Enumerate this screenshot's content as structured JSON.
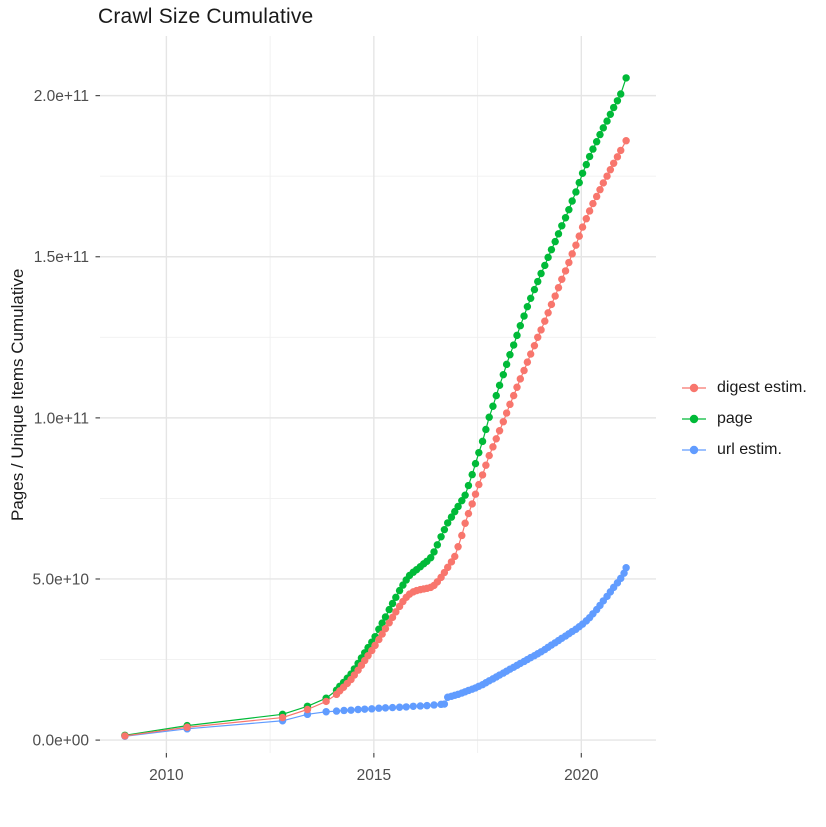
{
  "chart_data": {
    "type": "line",
    "title": "Crawl Size Cumulative",
    "xlabel": "",
    "ylabel": "Pages / Unique Items Cumulative",
    "unit": "values stored in billions (1e9); y axis shown in scientific notation",
    "grid": true,
    "legend_position": "right",
    "x_domain": [
      2008.4,
      2021.8
    ],
    "y_domain": [
      -4,
      218.5
    ],
    "x_ticks": [
      {
        "v": 2010,
        "label": "2010"
      },
      {
        "v": 2015,
        "label": "2015"
      },
      {
        "v": 2020,
        "label": "2020"
      }
    ],
    "x_minor": [
      2012.5,
      2017.5
    ],
    "y_ticks": [
      {
        "v": 0,
        "label": "0.0e+00"
      },
      {
        "v": 50,
        "label": "5.0e+10"
      },
      {
        "v": 100,
        "label": "1.0e+11"
      },
      {
        "v": 150,
        "label": "1.5e+11"
      },
      {
        "v": 200,
        "label": "2.0e+11"
      }
    ],
    "y_minor": [
      25,
      75,
      125,
      175
    ],
    "series": [
      {
        "name": "digest estim.",
        "color": "#F8766D",
        "points": [
          [
            2009.0,
            1.3
          ],
          [
            2010.5,
            4.0
          ],
          [
            2012.8,
            7.0
          ],
          [
            2013.4,
            9.5
          ],
          [
            2013.85,
            12.0
          ],
          [
            2014.1,
            14.2
          ],
          [
            2014.18,
            15.3
          ],
          [
            2014.27,
            16.4
          ],
          [
            2014.36,
            17.6
          ],
          [
            2014.45,
            18.8
          ],
          [
            2014.53,
            20.2
          ],
          [
            2014.62,
            21.7
          ],
          [
            2014.7,
            23.2
          ],
          [
            2014.78,
            24.7
          ],
          [
            2014.86,
            26.2
          ],
          [
            2014.95,
            27.8
          ],
          [
            2015.03,
            29.4
          ],
          [
            2015.12,
            31.2
          ],
          [
            2015.2,
            32.9
          ],
          [
            2015.28,
            34.6
          ],
          [
            2015.37,
            36.4
          ],
          [
            2015.45,
            38.1
          ],
          [
            2015.53,
            39.8
          ],
          [
            2015.62,
            41.5
          ],
          [
            2015.7,
            43.0
          ],
          [
            2015.78,
            44.3
          ],
          [
            2015.86,
            45.3
          ],
          [
            2015.95,
            46.0
          ],
          [
            2016.03,
            46.4
          ],
          [
            2016.12,
            46.7
          ],
          [
            2016.2,
            46.9
          ],
          [
            2016.28,
            47.1
          ],
          [
            2016.37,
            47.4
          ],
          [
            2016.45,
            48.0
          ],
          [
            2016.53,
            49.1
          ],
          [
            2016.62,
            50.5
          ],
          [
            2016.7,
            52.0
          ],
          [
            2016.78,
            53.6
          ],
          [
            2016.87,
            55.3
          ],
          [
            2016.95,
            57.0
          ],
          [
            2017.03,
            60.0
          ],
          [
            2017.12,
            63.5
          ],
          [
            2017.2,
            67.3
          ],
          [
            2017.28,
            70.3
          ],
          [
            2017.37,
            73.3
          ],
          [
            2017.45,
            76.3
          ],
          [
            2017.53,
            79.3
          ],
          [
            2017.62,
            82.3
          ],
          [
            2017.7,
            85.3
          ],
          [
            2017.78,
            88.3
          ],
          [
            2017.87,
            91.0
          ],
          [
            2017.95,
            93.5
          ],
          [
            2018.03,
            96.0
          ],
          [
            2018.12,
            98.8
          ],
          [
            2018.2,
            101.5
          ],
          [
            2018.28,
            104.2
          ],
          [
            2018.37,
            106.9
          ],
          [
            2018.45,
            109.5
          ],
          [
            2018.53,
            112.1
          ],
          [
            2018.62,
            114.7
          ],
          [
            2018.7,
            117.3
          ],
          [
            2018.78,
            119.8
          ],
          [
            2018.87,
            122.4
          ],
          [
            2018.95,
            125.0
          ],
          [
            2019.03,
            127.3
          ],
          [
            2019.12,
            130.0
          ],
          [
            2019.2,
            132.6
          ],
          [
            2019.28,
            135.2
          ],
          [
            2019.37,
            137.8
          ],
          [
            2019.45,
            140.4
          ],
          [
            2019.53,
            143.0
          ],
          [
            2019.62,
            145.6
          ],
          [
            2019.7,
            148.2
          ],
          [
            2019.78,
            150.9
          ],
          [
            2019.87,
            153.6
          ],
          [
            2019.95,
            156.4
          ],
          [
            2020.03,
            159.2
          ],
          [
            2020.12,
            161.8
          ],
          [
            2020.2,
            164.2
          ],
          [
            2020.28,
            166.5
          ],
          [
            2020.37,
            168.7
          ],
          [
            2020.45,
            170.8
          ],
          [
            2020.53,
            172.9
          ],
          [
            2020.62,
            175.0
          ],
          [
            2020.7,
            177.0
          ],
          [
            2020.78,
            179.0
          ],
          [
            2020.87,
            181.0
          ],
          [
            2020.95,
            183.0
          ],
          [
            2021.08,
            186.0
          ]
        ]
      },
      {
        "name": "page",
        "color": "#00BA38",
        "points": [
          [
            2009.0,
            1.5
          ],
          [
            2010.5,
            4.5
          ],
          [
            2012.8,
            8.0
          ],
          [
            2013.4,
            10.5
          ],
          [
            2013.85,
            13.0
          ],
          [
            2014.1,
            15.5
          ],
          [
            2014.18,
            16.7
          ],
          [
            2014.27,
            17.9
          ],
          [
            2014.36,
            19.2
          ],
          [
            2014.45,
            20.5
          ],
          [
            2014.53,
            22.1
          ],
          [
            2014.62,
            23.8
          ],
          [
            2014.7,
            25.5
          ],
          [
            2014.78,
            27.1
          ],
          [
            2014.86,
            28.7
          ],
          [
            2014.95,
            30.4
          ],
          [
            2015.03,
            32.1
          ],
          [
            2015.12,
            34.4
          ],
          [
            2015.2,
            36.3
          ],
          [
            2015.28,
            38.2
          ],
          [
            2015.37,
            40.5
          ],
          [
            2015.45,
            42.4
          ],
          [
            2015.53,
            44.3
          ],
          [
            2015.62,
            46.4
          ],
          [
            2015.7,
            48.1
          ],
          [
            2015.78,
            49.7
          ],
          [
            2015.86,
            51.1
          ],
          [
            2015.95,
            52.1
          ],
          [
            2016.03,
            52.9
          ],
          [
            2016.12,
            53.8
          ],
          [
            2016.2,
            54.7
          ],
          [
            2016.28,
            55.5
          ],
          [
            2016.37,
            56.6
          ],
          [
            2016.45,
            58.4
          ],
          [
            2016.53,
            60.6
          ],
          [
            2016.62,
            63.1
          ],
          [
            2016.7,
            65.3
          ],
          [
            2016.78,
            67.4
          ],
          [
            2016.87,
            69.2
          ],
          [
            2016.95,
            70.9
          ],
          [
            2017.03,
            72.5
          ],
          [
            2017.12,
            74.3
          ],
          [
            2017.2,
            76.0
          ],
          [
            2017.28,
            79.0
          ],
          [
            2017.37,
            82.4
          ],
          [
            2017.45,
            85.8
          ],
          [
            2017.53,
            89.2
          ],
          [
            2017.62,
            92.7
          ],
          [
            2017.7,
            96.4
          ],
          [
            2017.78,
            100.2
          ],
          [
            2017.87,
            103.6
          ],
          [
            2017.95,
            106.9
          ],
          [
            2018.03,
            110.1
          ],
          [
            2018.12,
            113.4
          ],
          [
            2018.2,
            116.6
          ],
          [
            2018.28,
            119.6
          ],
          [
            2018.37,
            122.6
          ],
          [
            2018.45,
            125.6
          ],
          [
            2018.53,
            128.6
          ],
          [
            2018.62,
            131.6
          ],
          [
            2018.7,
            134.5
          ],
          [
            2018.78,
            137.1
          ],
          [
            2018.87,
            139.8
          ],
          [
            2018.95,
            142.3
          ],
          [
            2019.03,
            144.8
          ],
          [
            2019.12,
            147.3
          ],
          [
            2019.2,
            149.8
          ],
          [
            2019.28,
            152.2
          ],
          [
            2019.37,
            154.7
          ],
          [
            2019.45,
            157.1
          ],
          [
            2019.53,
            159.6
          ],
          [
            2019.62,
            162.1
          ],
          [
            2019.7,
            164.6
          ],
          [
            2019.78,
            167.3
          ],
          [
            2019.87,
            170.1
          ],
          [
            2019.95,
            173.0
          ],
          [
            2020.03,
            175.9
          ],
          [
            2020.12,
            178.6
          ],
          [
            2020.2,
            181.1
          ],
          [
            2020.28,
            183.4
          ],
          [
            2020.37,
            185.7
          ],
          [
            2020.45,
            187.9
          ],
          [
            2020.53,
            190.0
          ],
          [
            2020.62,
            192.1
          ],
          [
            2020.7,
            194.2
          ],
          [
            2020.78,
            196.3
          ],
          [
            2020.87,
            198.4
          ],
          [
            2020.95,
            200.5
          ],
          [
            2021.08,
            205.5
          ]
        ]
      },
      {
        "name": "url estim.",
        "color": "#619CFF",
        "points": [
          [
            2009.0,
            1.2
          ],
          [
            2010.5,
            3.5
          ],
          [
            2012.8,
            6.0
          ],
          [
            2013.4,
            8.0
          ],
          [
            2013.85,
            8.8
          ],
          [
            2014.1,
            9.0
          ],
          [
            2014.28,
            9.2
          ],
          [
            2014.45,
            9.3
          ],
          [
            2014.62,
            9.5
          ],
          [
            2014.78,
            9.6
          ],
          [
            2014.95,
            9.7
          ],
          [
            2015.12,
            9.9
          ],
          [
            2015.28,
            10.0
          ],
          [
            2015.45,
            10.1
          ],
          [
            2015.62,
            10.2
          ],
          [
            2015.78,
            10.3
          ],
          [
            2015.95,
            10.5
          ],
          [
            2016.12,
            10.6
          ],
          [
            2016.28,
            10.7
          ],
          [
            2016.45,
            10.9
          ],
          [
            2016.62,
            11.1
          ],
          [
            2016.7,
            11.2
          ],
          [
            2016.78,
            13.3
          ],
          [
            2016.87,
            13.6
          ],
          [
            2016.95,
            13.9
          ],
          [
            2017.03,
            14.2
          ],
          [
            2017.12,
            14.6
          ],
          [
            2017.2,
            15.0
          ],
          [
            2017.28,
            15.4
          ],
          [
            2017.37,
            15.8
          ],
          [
            2017.45,
            16.2
          ],
          [
            2017.53,
            16.7
          ],
          [
            2017.62,
            17.2
          ],
          [
            2017.7,
            17.8
          ],
          [
            2017.78,
            18.4
          ],
          [
            2017.87,
            19.0
          ],
          [
            2017.95,
            19.6
          ],
          [
            2018.03,
            20.2
          ],
          [
            2018.12,
            20.8
          ],
          [
            2018.2,
            21.4
          ],
          [
            2018.28,
            22.0
          ],
          [
            2018.37,
            22.6
          ],
          [
            2018.45,
            23.2
          ],
          [
            2018.53,
            23.8
          ],
          [
            2018.62,
            24.4
          ],
          [
            2018.7,
            25.0
          ],
          [
            2018.78,
            25.6
          ],
          [
            2018.87,
            26.2
          ],
          [
            2018.95,
            26.8
          ],
          [
            2019.03,
            27.4
          ],
          [
            2019.12,
            28.1
          ],
          [
            2019.2,
            28.8
          ],
          [
            2019.28,
            29.5
          ],
          [
            2019.37,
            30.2
          ],
          [
            2019.45,
            30.9
          ],
          [
            2019.53,
            31.6
          ],
          [
            2019.62,
            32.3
          ],
          [
            2019.7,
            33.0
          ],
          [
            2019.78,
            33.7
          ],
          [
            2019.87,
            34.4
          ],
          [
            2019.95,
            35.2
          ],
          [
            2020.03,
            36.0
          ],
          [
            2020.12,
            37.0
          ],
          [
            2020.2,
            38.0
          ],
          [
            2020.28,
            39.2
          ],
          [
            2020.37,
            40.5
          ],
          [
            2020.45,
            41.8
          ],
          [
            2020.53,
            43.2
          ],
          [
            2020.62,
            44.6
          ],
          [
            2020.7,
            46.0
          ],
          [
            2020.78,
            47.4
          ],
          [
            2020.87,
            48.8
          ],
          [
            2020.95,
            50.2
          ],
          [
            2021.03,
            51.8
          ],
          [
            2021.08,
            53.5
          ]
        ]
      }
    ],
    "style": {
      "grid_major_color": "#e5e5e5",
      "grid_minor_color": "#f0f0f0",
      "tick_color": "#4d4d4d",
      "text_color": "#4d4d4d",
      "title_color": "#1a1a1a",
      "background": "#ffffff"
    }
  }
}
